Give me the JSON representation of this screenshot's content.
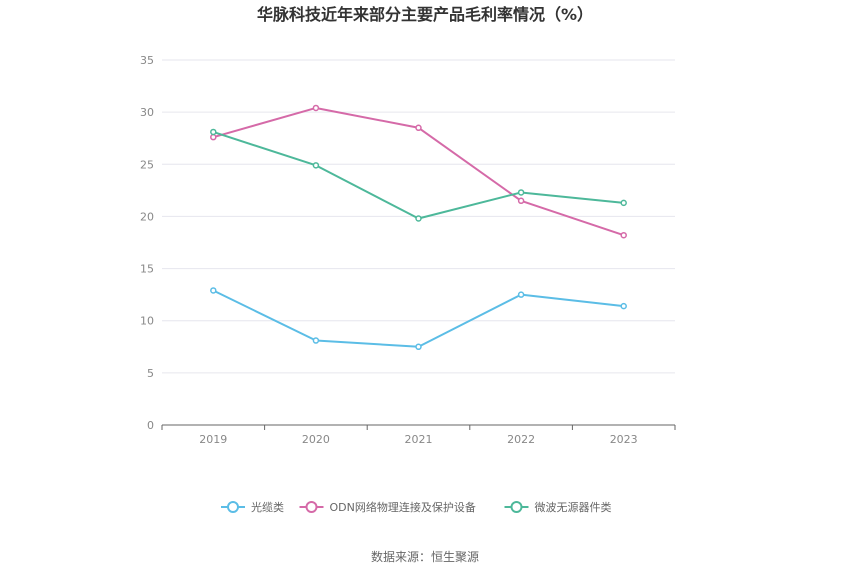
{
  "chart_data": {
    "type": "line",
    "title": "华脉科技近年来部分主要产品毛利率情况（%）",
    "xlabel": "",
    "ylabel": "",
    "categories": [
      "2019",
      "2020",
      "2021",
      "2022",
      "2023"
    ],
    "ylim": [
      0,
      35
    ],
    "yticks": [
      0,
      5,
      10,
      15,
      20,
      25,
      30,
      35
    ],
    "grid": true,
    "legend_position": "bottom",
    "series": [
      {
        "name": "光缆类",
        "color": "#5bbde6",
        "values": [
          12.9,
          8.1,
          7.5,
          12.5,
          11.4
        ]
      },
      {
        "name": "ODN网络物理连接及保护设备",
        "color": "#d56aa8",
        "values": [
          27.6,
          30.4,
          28.5,
          21.5,
          18.2
        ]
      },
      {
        "name": "微波无源器件类",
        "color": "#4db89a",
        "values": [
          28.1,
          24.9,
          19.8,
          22.3,
          21.3
        ]
      }
    ]
  },
  "source_text": "数据来源：恒生聚源"
}
